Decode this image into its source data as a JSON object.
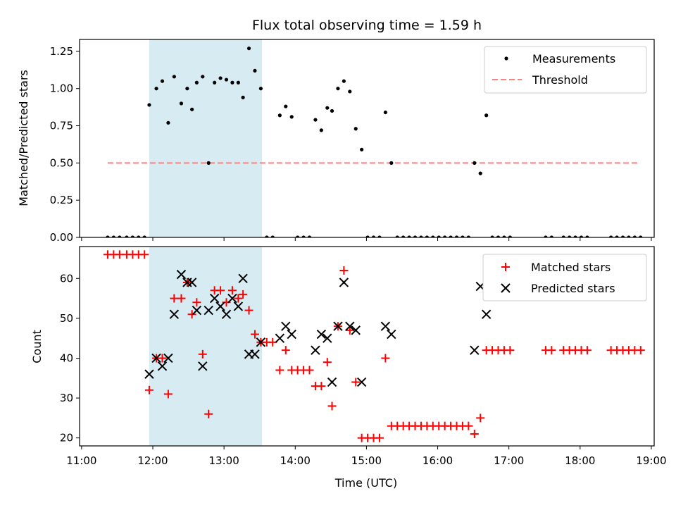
{
  "figure": {
    "title": "Flux total observing time = 1.59 h",
    "xlabel": "Time (UTC)",
    "x_ticks": [
      "11:00",
      "12:00",
      "13:00",
      "14:00",
      "15:00",
      "16:00",
      "17:00",
      "18:00",
      "19:00"
    ],
    "colors": {
      "shade": "#add8e6",
      "threshold": "#ff7f7f",
      "matched": "#ff0000",
      "predicted": "#000000",
      "measurements": "#000000"
    }
  },
  "chart_data": [
    {
      "type": "scatter",
      "panel": "top",
      "title": "Flux total observing time = 1.59 h",
      "xlabel": "",
      "ylabel": "Matched/Predicted stars",
      "xlim": [
        "11:00",
        "19:00"
      ],
      "ylim": [
        0,
        1.33
      ],
      "y_ticks": [
        "0.00",
        "0.25",
        "0.50",
        "0.75",
        "1.00",
        "1.25"
      ],
      "legend_position": "top-right",
      "shaded_interval": {
        "start": "11:57",
        "end": "13:32"
      },
      "threshold": {
        "name": "Threshold",
        "value": 0.5,
        "x_start": "11:22",
        "x_end": "18:50"
      },
      "series": [
        {
          "name": "Measurements",
          "points": [
            [
              "11:22",
              0
            ],
            [
              "11:27",
              0
            ],
            [
              "11:32",
              0
            ],
            [
              "11:38",
              0
            ],
            [
              "11:43",
              0
            ],
            [
              "11:48",
              0
            ],
            [
              "11:53",
              0
            ],
            [
              "11:57",
              0.89
            ],
            [
              "12:03",
              1.0
            ],
            [
              "12:08",
              1.05
            ],
            [
              "12:13",
              0.77
            ],
            [
              "12:18",
              1.08
            ],
            [
              "12:24",
              0.9
            ],
            [
              "12:29",
              1.0
            ],
            [
              "12:33",
              0.86
            ],
            [
              "12:37",
              1.04
            ],
            [
              "12:42",
              1.08
            ],
            [
              "12:47",
              0.5
            ],
            [
              "12:52",
              1.04
            ],
            [
              "12:57",
              1.07
            ],
            [
              "13:02",
              1.06
            ],
            [
              "13:07",
              1.04
            ],
            [
              "13:12",
              1.04
            ],
            [
              "13:16",
              0.94
            ],
            [
              "13:21",
              1.27
            ],
            [
              "13:26",
              1.12
            ],
            [
              "13:31",
              1.0
            ],
            [
              "13:36",
              0
            ],
            [
              "13:41",
              0
            ],
            [
              "13:47",
              0.82
            ],
            [
              "13:52",
              0.88
            ],
            [
              "13:57",
              0.81
            ],
            [
              "14:02",
              0
            ],
            [
              "14:07",
              0
            ],
            [
              "14:12",
              0
            ],
            [
              "14:17",
              0.79
            ],
            [
              "14:22",
              0.72
            ],
            [
              "14:27",
              0.87
            ],
            [
              "14:31",
              0.85
            ],
            [
              "14:36",
              1.0
            ],
            [
              "14:41",
              1.05
            ],
            [
              "14:46",
              0.98
            ],
            [
              "14:51",
              0.73
            ],
            [
              "14:56",
              0.59
            ],
            [
              "15:01",
              0
            ],
            [
              "15:06",
              0
            ],
            [
              "15:11",
              0
            ],
            [
              "15:16",
              0.84
            ],
            [
              "15:21",
              0.5
            ],
            [
              "15:26",
              0
            ],
            [
              "15:31",
              0
            ],
            [
              "15:36",
              0
            ],
            [
              "15:41",
              0
            ],
            [
              "15:46",
              0
            ],
            [
              "15:51",
              0
            ],
            [
              "15:56",
              0
            ],
            [
              "16:01",
              0
            ],
            [
              "16:06",
              0
            ],
            [
              "16:11",
              0
            ],
            [
              "16:16",
              0
            ],
            [
              "16:21",
              0
            ],
            [
              "16:26",
              0
            ],
            [
              "16:31",
              0.5
            ],
            [
              "16:36",
              0.43
            ],
            [
              "16:41",
              0.82
            ],
            [
              "16:46",
              0
            ],
            [
              "16:51",
              0
            ],
            [
              "16:56",
              0
            ],
            [
              "17:01",
              0
            ],
            [
              "17:31",
              0
            ],
            [
              "17:36",
              0
            ],
            [
              "17:46",
              0
            ],
            [
              "17:51",
              0
            ],
            [
              "17:56",
              0
            ],
            [
              "18:01",
              0
            ],
            [
              "18:06",
              0
            ],
            [
              "18:26",
              0
            ],
            [
              "18:31",
              0
            ],
            [
              "18:36",
              0
            ],
            [
              "18:41",
              0
            ],
            [
              "18:46",
              0
            ],
            [
              "18:51",
              0
            ]
          ]
        }
      ]
    },
    {
      "type": "scatter",
      "panel": "bottom",
      "xlabel": "Time (UTC)",
      "ylabel": "Count",
      "xlim": [
        "11:00",
        "19:00"
      ],
      "ylim": [
        18,
        68
      ],
      "y_ticks": [
        "20",
        "30",
        "40",
        "50",
        "60"
      ],
      "legend_position": "top-right",
      "shaded_interval": {
        "start": "11:57",
        "end": "13:32"
      },
      "series": [
        {
          "name": "Matched stars",
          "marker": "plus",
          "points": [
            [
              "11:22",
              66
            ],
            [
              "11:27",
              66
            ],
            [
              "11:32",
              66
            ],
            [
              "11:38",
              66
            ],
            [
              "11:43",
              66
            ],
            [
              "11:48",
              66
            ],
            [
              "11:53",
              66
            ],
            [
              "11:57",
              32
            ],
            [
              "12:03",
              40
            ],
            [
              "12:08",
              40
            ],
            [
              "12:13",
              31
            ],
            [
              "12:18",
              55
            ],
            [
              "12:24",
              55
            ],
            [
              "12:29",
              59
            ],
            [
              "12:33",
              51
            ],
            [
              "12:37",
              54
            ],
            [
              "12:42",
              41
            ],
            [
              "12:47",
              26
            ],
            [
              "12:52",
              57
            ],
            [
              "12:57",
              57
            ],
            [
              "13:02",
              54
            ],
            [
              "13:07",
              57
            ],
            [
              "13:12",
              55
            ],
            [
              "13:16",
              56
            ],
            [
              "13:21",
              52
            ],
            [
              "13:26",
              46
            ],
            [
              "13:31",
              44
            ],
            [
              "13:36",
              44
            ],
            [
              "13:41",
              44
            ],
            [
              "13:47",
              37
            ],
            [
              "13:52",
              42
            ],
            [
              "13:57",
              37
            ],
            [
              "14:02",
              37
            ],
            [
              "14:07",
              37
            ],
            [
              "14:12",
              37
            ],
            [
              "14:17",
              33
            ],
            [
              "14:22",
              33
            ],
            [
              "14:27",
              39
            ],
            [
              "14:31",
              28
            ],
            [
              "14:36",
              48
            ],
            [
              "14:41",
              62
            ],
            [
              "14:46",
              47
            ],
            [
              "14:51",
              34
            ],
            [
              "14:56",
              20
            ],
            [
              "15:01",
              20
            ],
            [
              "15:06",
              20
            ],
            [
              "15:11",
              20
            ],
            [
              "15:16",
              40
            ],
            [
              "15:21",
              23
            ],
            [
              "15:26",
              23
            ],
            [
              "15:31",
              23
            ],
            [
              "15:36",
              23
            ],
            [
              "15:41",
              23
            ],
            [
              "15:46",
              23
            ],
            [
              "15:51",
              23
            ],
            [
              "15:56",
              23
            ],
            [
              "16:01",
              23
            ],
            [
              "16:06",
              23
            ],
            [
              "16:11",
              23
            ],
            [
              "16:16",
              23
            ],
            [
              "16:21",
              23
            ],
            [
              "16:26",
              23
            ],
            [
              "16:31",
              21
            ],
            [
              "16:36",
              25
            ],
            [
              "16:41",
              42
            ],
            [
              "16:46",
              42
            ],
            [
              "16:51",
              42
            ],
            [
              "16:56",
              42
            ],
            [
              "17:01",
              42
            ],
            [
              "17:31",
              42
            ],
            [
              "17:36",
              42
            ],
            [
              "17:46",
              42
            ],
            [
              "17:51",
              42
            ],
            [
              "17:56",
              42
            ],
            [
              "18:01",
              42
            ],
            [
              "18:06",
              42
            ],
            [
              "18:26",
              42
            ],
            [
              "18:31",
              42
            ],
            [
              "18:36",
              42
            ],
            [
              "18:41",
              42
            ],
            [
              "18:46",
              42
            ],
            [
              "18:51",
              42
            ]
          ]
        },
        {
          "name": "Predicted stars",
          "marker": "x",
          "points": [
            [
              "11:57",
              36
            ],
            [
              "12:03",
              40
            ],
            [
              "12:08",
              38
            ],
            [
              "12:13",
              40
            ],
            [
              "12:18",
              51
            ],
            [
              "12:24",
              61
            ],
            [
              "12:29",
              59
            ],
            [
              "12:33",
              59
            ],
            [
              "12:37",
              52
            ],
            [
              "12:42",
              38
            ],
            [
              "12:47",
              52
            ],
            [
              "12:52",
              55
            ],
            [
              "12:57",
              53
            ],
            [
              "13:02",
              51
            ],
            [
              "13:07",
              55
            ],
            [
              "13:12",
              53
            ],
            [
              "13:16",
              60
            ],
            [
              "13:21",
              41
            ],
            [
              "13:26",
              41
            ],
            [
              "13:31",
              44
            ],
            [
              "13:47",
              45
            ],
            [
              "13:52",
              48
            ],
            [
              "13:57",
              46
            ],
            [
              "14:17",
              42
            ],
            [
              "14:22",
              46
            ],
            [
              "14:27",
              45
            ],
            [
              "14:31",
              34
            ],
            [
              "14:36",
              48
            ],
            [
              "14:41",
              59
            ],
            [
              "14:46",
              48
            ],
            [
              "14:51",
              47
            ],
            [
              "14:56",
              34
            ],
            [
              "15:16",
              48
            ],
            [
              "15:21",
              46
            ],
            [
              "16:31",
              42
            ],
            [
              "16:36",
              58
            ],
            [
              "16:41",
              51
            ]
          ]
        }
      ]
    }
  ]
}
